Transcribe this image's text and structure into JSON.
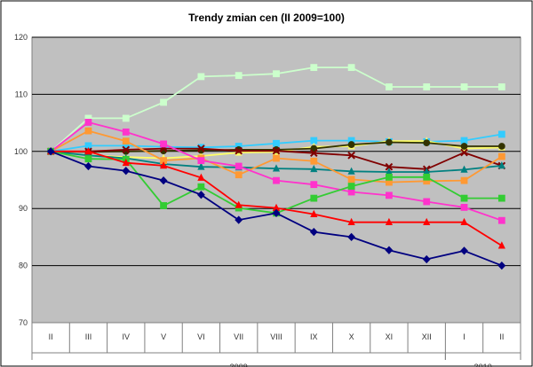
{
  "chart_data": {
    "type": "line",
    "title": "Trendy zmian cen (II 2009=100)",
    "xlabel": "",
    "ylabel": "",
    "categories": [
      "II",
      "III",
      "IV",
      "V",
      "VI",
      "VII",
      "VIII",
      "IX",
      "X",
      "XI",
      "XII",
      "I",
      "II"
    ],
    "year_labels": [
      {
        "label": "2009",
        "from": 0,
        "to": 10
      },
      {
        "label": "2010",
        "from": 11,
        "to": 12
      }
    ],
    "ylim": [
      70,
      120
    ],
    "yticks": [
      70,
      80,
      90,
      100,
      110,
      120
    ],
    "grid": true,
    "legend": "none",
    "plot_background": "#c0c0c0",
    "series": [
      {
        "color": "#ccffcc",
        "marker": "square",
        "values": [
          100,
          105.8,
          105.8,
          108.6,
          113.1,
          113.3,
          113.6,
          114.7,
          114.7,
          111.3,
          111.3,
          111.3,
          111.3
        ]
      },
      {
        "color": "#33ccff",
        "marker": "square",
        "values": [
          100,
          101,
          101,
          100.8,
          100.7,
          100.9,
          101.4,
          101.9,
          101.9,
          101.7,
          101.7,
          101.9,
          103.0
        ]
      },
      {
        "color": "#ffff66",
        "marker": "triangle",
        "values": [
          100,
          99.3,
          99.0,
          98.8,
          99.2,
          99.8,
          99.9,
          100.8,
          100.9,
          101.8,
          101.8,
          100.5,
          100.7
        ]
      },
      {
        "color": "#333300",
        "marker": "circle",
        "values": [
          100,
          99.9,
          100,
          100.1,
          100.2,
          100.3,
          100.3,
          100.5,
          101.2,
          101.6,
          101.5,
          100.9,
          100.9
        ]
      },
      {
        "color": "#800000",
        "marker": "cross",
        "values": [
          100,
          100,
          100.3,
          100.5,
          100.5,
          100.1,
          100.1,
          99.7,
          99.3,
          97.3,
          96.9,
          99.8,
          97.5
        ]
      },
      {
        "color": "#008080",
        "marker": "triangle",
        "values": [
          100,
          99.3,
          98.8,
          97.8,
          97.3,
          97.2,
          97.0,
          96.9,
          96.5,
          96.4,
          96.4,
          96.8,
          97.5
        ]
      },
      {
        "color": "#ff9933",
        "marker": "square",
        "values": [
          100,
          103.6,
          101.8,
          98.4,
          98.8,
          95.9,
          98.8,
          98.3,
          95.1,
          94.6,
          94.8,
          94.9,
          99.1
        ]
      },
      {
        "color": "#ff33cc",
        "marker": "square",
        "values": [
          100,
          105.1,
          103.4,
          101.3,
          98.4,
          97.4,
          94.9,
          94.2,
          92.9,
          92.3,
          91.2,
          90.2,
          87.9
        ]
      },
      {
        "color": "#33cc33",
        "marker": "square",
        "values": [
          100,
          98.7,
          98.6,
          90.5,
          93.8,
          90.1,
          89.2,
          91.8,
          93.9,
          95.5,
          95.5,
          91.8,
          91.8
        ]
      },
      {
        "color": "#ff0000",
        "marker": "triangle",
        "values": [
          100,
          100,
          98,
          97.5,
          95.4,
          90.6,
          90.1,
          89.0,
          87.6,
          87.6,
          87.6,
          87.6,
          83.5
        ]
      },
      {
        "color": "#000080",
        "marker": "diamond",
        "values": [
          100,
          97.4,
          96.6,
          94.9,
          92.4,
          88.0,
          89.2,
          85.9,
          85.0,
          82.7,
          81.1,
          82.6,
          80.0
        ]
      }
    ]
  }
}
